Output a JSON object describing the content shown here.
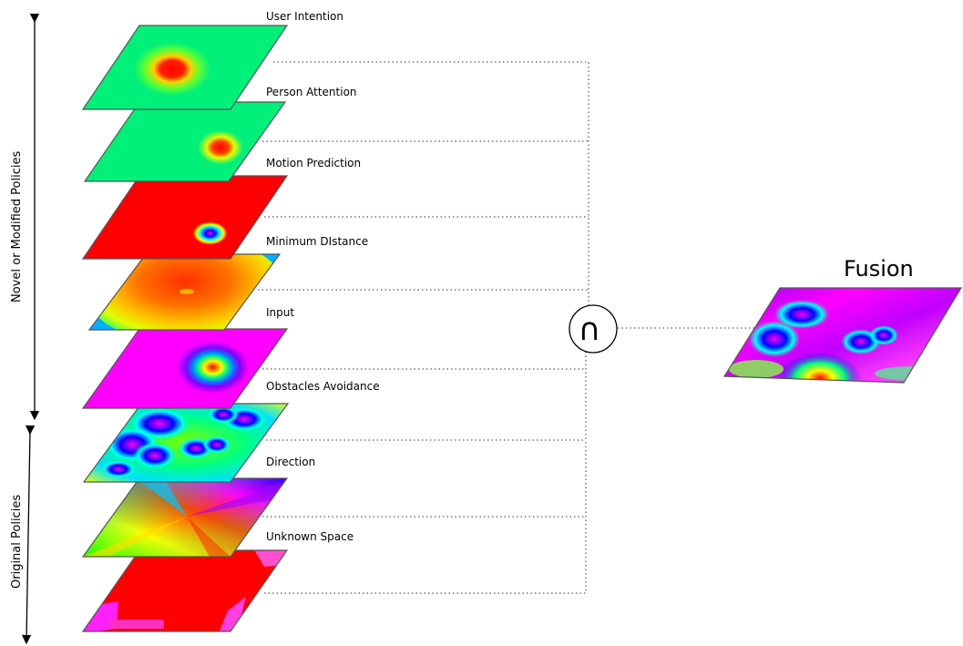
{
  "layers": [
    {
      "label": "User Intention",
      "base": "#00f07a",
      "spot": [
        "#ff0000",
        "#ffe000",
        "#00f07a"
      ]
    },
    {
      "label": "Person Attention",
      "base": "#00f07a",
      "spot": [
        "#ff0000",
        "#ffe000",
        "#00f07a"
      ]
    },
    {
      "label": "Motion Prediction",
      "base": "#ff0000",
      "spot": [
        "#ff00ff",
        "#0000ff",
        "#00ff80",
        "#ff0000"
      ]
    },
    {
      "label": "Minimum DIstance",
      "base": "#00d0ff",
      "spot": [
        "#ff3000",
        "#ff8000",
        "#ffe000",
        "#00ff80"
      ]
    },
    {
      "label": "Input",
      "base": "#ff00ff",
      "spot": [
        "#ff0000",
        "#ffff00",
        "#00ff80",
        "#0000ff",
        "#ff00ff"
      ]
    },
    {
      "label": "Obstacles Avoidance",
      "base": "#00ff40",
      "spot": [
        "#ff00ff",
        "#0000ff",
        "#00ffff"
      ]
    },
    {
      "label": "Direction",
      "base": "conic",
      "spot": []
    },
    {
      "label": "Unknown Space",
      "base": "#ff0000",
      "spot": [
        "#ff00ff"
      ]
    }
  ],
  "groups": {
    "novel": "Novel or Modified Policies",
    "original": "Original Policies"
  },
  "operator": "∩",
  "fusion": {
    "title": "Fusion"
  },
  "colors": {
    "line": "#333333",
    "frame": "#555555"
  }
}
